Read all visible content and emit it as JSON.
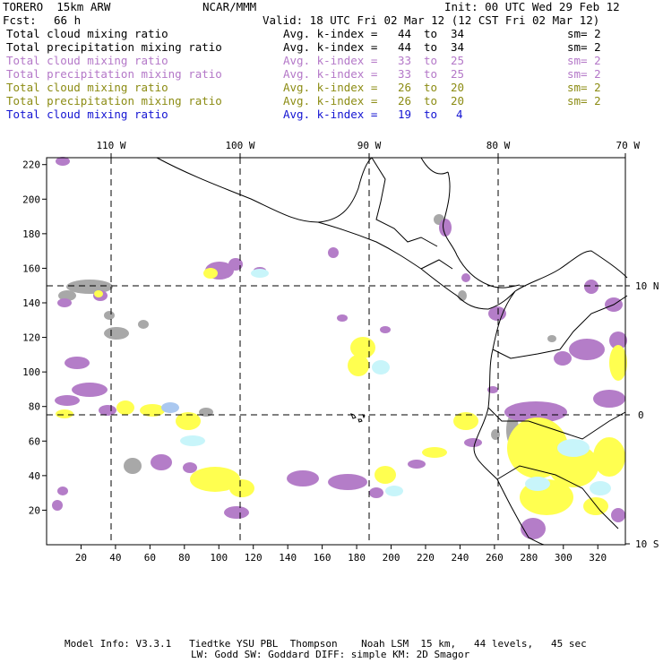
{
  "header": {
    "model_name": "TORERO  15km ARW",
    "org": "NCAR/MMM",
    "init": "Init: 00 UTC Wed 29 Feb 12",
    "forecast_label": "Fcst:",
    "forecast_hours": "66 h",
    "valid": "Valid: 18 UTC Fri 02 Mar 12 (12 CST Fri 02 Mar 12)"
  },
  "legend": [
    {
      "field": "Total cloud mixing ratio",
      "kindex_label": "Avg. k-index =",
      "k_from": "44",
      "to": "to",
      "k_to": "34",
      "sm": "sm= 2",
      "color": "#000000"
    },
    {
      "field": "Total precipitation mixing ratio",
      "kindex_label": "Avg. k-index =",
      "k_from": "44",
      "to": "to",
      "k_to": "34",
      "sm": "sm= 2",
      "color": "#000000"
    },
    {
      "field": "Total cloud mixing ratio",
      "kindex_label": "Avg. k-index =",
      "k_from": "33",
      "to": "to",
      "k_to": "25",
      "sm": "sm= 2",
      "color": "#b478c8"
    },
    {
      "field": "Total precipitation mixing ratio",
      "kindex_label": "Avg. k-index =",
      "k_from": "33",
      "to": "to",
      "k_to": "25",
      "sm": "sm= 2",
      "color": "#b478c8"
    },
    {
      "field": "Total cloud mixing ratio",
      "kindex_label": "Avg. k-index =",
      "k_from": "26",
      "to": "to",
      "k_to": "20",
      "sm": "sm= 2",
      "color": "#8c8c14"
    },
    {
      "field": "Total precipitation mixing ratio",
      "kindex_label": "Avg. k-index =",
      "k_from": "26",
      "to": "to",
      "k_to": "20",
      "sm": "sm= 2",
      "color": "#8c8c14"
    },
    {
      "field": "Total cloud mixing ratio",
      "kindex_label": "Avg. k-index =",
      "k_from": "19",
      "to": "to",
      "k_to": "4",
      "sm": "",
      "color": "#1414d2"
    }
  ],
  "map": {
    "lon_labels": [
      "110 W",
      "100 W",
      "90 W",
      "80 W",
      "70 W"
    ],
    "lat_labels": [
      "10 N",
      "0",
      "10 S"
    ],
    "y_ticks": [
      "220",
      "200",
      "180",
      "160",
      "140",
      "120",
      "100",
      "80",
      "60",
      "40",
      "20"
    ],
    "x_ticks": [
      "20",
      "40",
      "60",
      "80",
      "100",
      "120",
      "140",
      "160",
      "180",
      "200",
      "220",
      "240",
      "260",
      "280",
      "300",
      "320"
    ],
    "shading_colors": {
      "grey": "#a8a8a8",
      "purple": "#b47dc8",
      "yellow": "#ffff50",
      "cyan": "#c8f5fa",
      "blue": "#aac8f0"
    }
  },
  "footer": {
    "line1": "Model Info: V3.3.1   Tiedtke YSU PBL  Thompson    Noah LSM  15 km,   44 levels,   45 sec",
    "line2": "LW: Godd SW: Goddard DIFF: simple KM: 2D Smagor"
  }
}
